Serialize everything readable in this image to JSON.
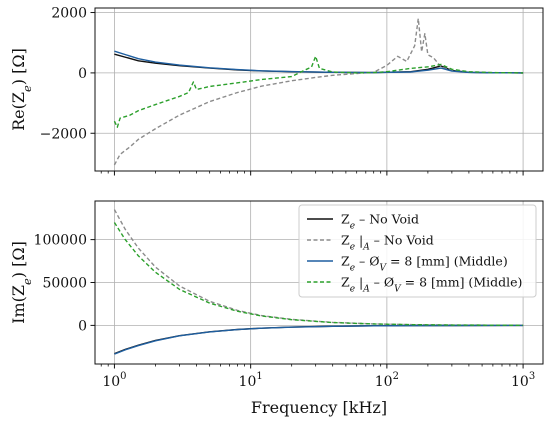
{
  "chart_data": [
    {
      "type": "line",
      "ylabel": "Re(Z_e) [Ω]",
      "xscale": "log",
      "xlim": [
        0.72,
        1400
      ],
      "ylim": [
        -3250,
        2150
      ],
      "grid": true,
      "yticks": [
        {
          "value": -2000,
          "label": "−2000"
        },
        {
          "value": 0,
          "label": "0"
        },
        {
          "value": 2000,
          "label": "2000"
        }
      ],
      "series": [
        {
          "name": "Z_e – No Void",
          "color": "#111111",
          "dash": "solid",
          "x": [
            1,
            1.5,
            2,
            3,
            5,
            8,
            12,
            20,
            40,
            80,
            150,
            200,
            250,
            300,
            400,
            600,
            1000
          ],
          "y": [
            620,
            400,
            320,
            240,
            160,
            100,
            65,
            40,
            20,
            10,
            40,
            120,
            230,
            80,
            20,
            5,
            0
          ]
        },
        {
          "name": "Z_e |_A – No Void",
          "color": "#8c8c8c",
          "dash": "dashed",
          "x": [
            1,
            1.1,
            1.3,
            1.5,
            2,
            3,
            5,
            8,
            12,
            20,
            30,
            40,
            60,
            80,
            100,
            120,
            140,
            160,
            170,
            180,
            190,
            200,
            220,
            250,
            300,
            400,
            600,
            1000
          ],
          "y": [
            -3050,
            -2700,
            -2450,
            -2200,
            -1850,
            -1400,
            -950,
            -650,
            -440,
            -260,
            -150,
            -80,
            -20,
            20,
            250,
            550,
            380,
            900,
            1800,
            700,
            1300,
            600,
            500,
            200,
            80,
            20,
            5,
            0
          ]
        },
        {
          "name": "Z_e – Ø_V = 8 [mm] (Middle)",
          "color": "#1f5fa0",
          "dash": "solid",
          "x": [
            1,
            1.5,
            2,
            3,
            5,
            8,
            12,
            20,
            40,
            80,
            150,
            200,
            250,
            300,
            400,
            600,
            1000
          ],
          "y": [
            720,
            470,
            360,
            260,
            170,
            110,
            70,
            45,
            20,
            10,
            30,
            90,
            160,
            60,
            15,
            5,
            0
          ]
        },
        {
          "name": "Z_e |_A – Ø_V = 8 [mm] (Middle)",
          "color": "#2ca02c",
          "dash": "dashed",
          "x": [
            1,
            1.05,
            1.1,
            1.3,
            1.5,
            2,
            2.5,
            3,
            3.5,
            3.8,
            4,
            5,
            8,
            12,
            20,
            28,
            30,
            32,
            40,
            60,
            80,
            100,
            150,
            200,
            250,
            300,
            400,
            600,
            1000
          ],
          "y": [
            -1600,
            -1800,
            -1500,
            -1400,
            -1250,
            -1050,
            -900,
            -780,
            -650,
            -300,
            -550,
            -450,
            -330,
            -220,
            -120,
            200,
            550,
            150,
            30,
            0,
            10,
            40,
            150,
            200,
            280,
            120,
            40,
            10,
            0
          ]
        }
      ]
    },
    {
      "type": "line",
      "xlabel": "Frequency [kHz]",
      "ylabel": "Im(Z_e) [Ω]",
      "xscale": "log",
      "xlim": [
        0.72,
        1400
      ],
      "ylim": [
        -45000,
        145000
      ],
      "grid": true,
      "legend": "top-right",
      "xticks": [
        {
          "value": 1,
          "label": "10",
          "exp": "0"
        },
        {
          "value": 10,
          "label": "10",
          "exp": "1"
        },
        {
          "value": 100,
          "label": "10",
          "exp": "2"
        },
        {
          "value": 1000,
          "label": "10",
          "exp": "3"
        }
      ],
      "yticks": [
        {
          "value": 0,
          "label": "0"
        },
        {
          "value": 50000,
          "label": "50000"
        },
        {
          "value": 100000,
          "label": "100000"
        }
      ],
      "series": [
        {
          "name": "Z_e – No Void",
          "color": "#111111",
          "dash": "solid",
          "x": [
            1,
            1.2,
            1.5,
            2,
            3,
            5,
            8,
            12,
            20,
            40,
            80,
            150,
            300,
            1000
          ],
          "y": [
            -33000,
            -28000,
            -23000,
            -17500,
            -12000,
            -7500,
            -4800,
            -3200,
            -2000,
            -1000,
            -500,
            -250,
            -120,
            -30
          ]
        },
        {
          "name": "Z_e |_A – No Void",
          "color": "#8c8c8c",
          "dash": "dashed",
          "x": [
            1,
            1.2,
            1.5,
            2,
            3,
            5,
            8,
            12,
            20,
            40,
            80,
            150,
            300,
            1000
          ],
          "y": [
            135000,
            112000,
            90000,
            68000,
            46000,
            28000,
            17500,
            11500,
            7000,
            3500,
            1700,
            900,
            450,
            130
          ]
        },
        {
          "name": "Z_e – Ø_V = 8 [mm] (Middle)",
          "color": "#1f5fa0",
          "dash": "solid",
          "x": [
            1,
            1.2,
            1.5,
            2,
            3,
            5,
            8,
            12,
            20,
            40,
            80,
            150,
            300,
            1000
          ],
          "y": [
            -33500,
            -28500,
            -23500,
            -18000,
            -12200,
            -7600,
            -4900,
            -3300,
            -2050,
            -1050,
            -520,
            -260,
            -125,
            -30
          ]
        },
        {
          "name": "Z_e |_A – Ø_V = 8 [mm] (Middle)",
          "color": "#2ca02c",
          "dash": "dashed",
          "x": [
            1,
            1.2,
            1.5,
            2,
            3,
            5,
            8,
            12,
            20,
            40,
            80,
            150,
            300,
            1000
          ],
          "y": [
            120000,
            100000,
            81000,
            62000,
            42000,
            26000,
            16500,
            11000,
            6700,
            3300,
            1650,
            870,
            430,
            125
          ]
        }
      ]
    }
  ]
}
